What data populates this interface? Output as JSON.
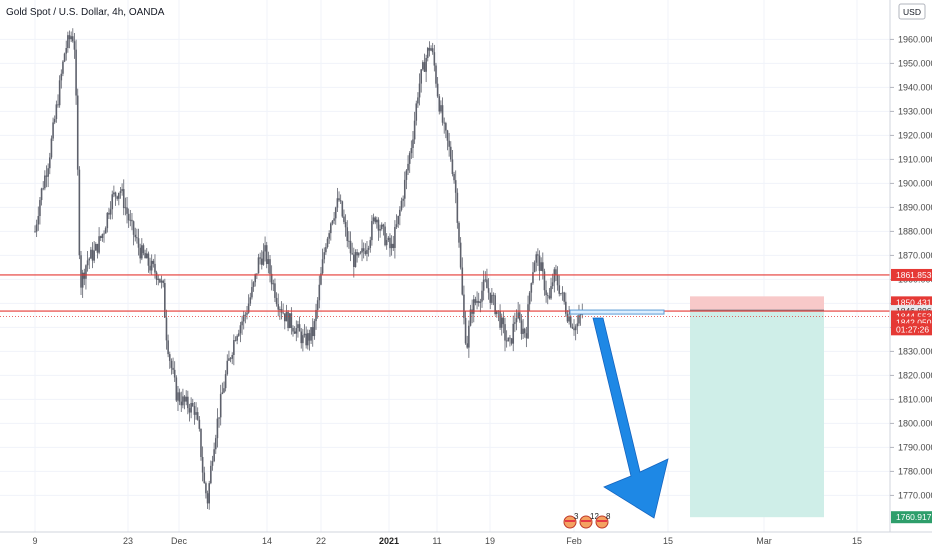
{
  "title": "Gold Spot / U.S. Dollar, 4h, OANDA",
  "currency_button": "USD",
  "colors": {
    "up": "#26a69a",
    "down": "#ef5350",
    "candle": "#5d606b",
    "resistance_line": "#e53935",
    "arrow": "#1e88e5",
    "stop_zone": "#f8c9c9",
    "target_zone": "#cfeee8",
    "target_tag": "#2e9e6b",
    "price_tag": "#e53935"
  },
  "chart_data": {
    "type": "candlestick",
    "symbol": "Gold Spot / U.S. Dollar",
    "interval": "4h",
    "source": "OANDA",
    "ylim": [
      1760,
      1975
    ],
    "y_ticks": [
      1770,
      1780,
      1790,
      1800,
      1810,
      1820,
      1830,
      1840,
      1850,
      1860,
      1870,
      1880,
      1890,
      1900,
      1910,
      1920,
      1930,
      1940,
      1950,
      1960
    ],
    "x_ticks": [
      "9",
      "23",
      "Dec",
      "14",
      "22",
      "2021",
      "11",
      "19",
      "Feb",
      "15",
      "Mar",
      "15"
    ],
    "horizontal_lines": [
      1861.853,
      1846.806
    ],
    "price_tags": [
      {
        "label": "1861.853",
        "value": 1861.853,
        "style": "red"
      },
      {
        "label": "1850.431",
        "value": 1850.431,
        "style": "red"
      },
      {
        "label": "1846.806",
        "value": 1846.806,
        "style": "gray"
      },
      {
        "label": "1844.553",
        "value": 1844.553,
        "style": "red"
      },
      {
        "label": "1842.050",
        "value": 1842.05,
        "style": "red"
      },
      {
        "label": "01:27:26",
        "value": 1839.2,
        "style": "red"
      },
      {
        "label": "1760.917",
        "value": 1760.917,
        "style": "green"
      }
    ],
    "trade_setup": {
      "direction": "short",
      "entry": 1846.806,
      "stop": 1850.431,
      "target": 1760.917
    },
    "price_path": [
      [
        0.0,
        1880
      ],
      [
        0.5,
        1893
      ],
      [
        1.5,
        1910
      ],
      [
        2.5,
        1935
      ],
      [
        3.3,
        1956
      ],
      [
        4.0,
        1962
      ],
      [
        4.3,
        1960
      ],
      [
        4.6,
        1920
      ],
      [
        4.8,
        1880
      ],
      [
        5.0,
        1858
      ],
      [
        5.7,
        1868
      ],
      [
        6.5,
        1871
      ],
      [
        7.5,
        1880
      ],
      [
        8.3,
        1893
      ],
      [
        9.3,
        1898
      ],
      [
        10.5,
        1882
      ],
      [
        11.5,
        1872
      ],
      [
        12.5,
        1866
      ],
      [
        13.5,
        1862
      ],
      [
        14.1,
        1855
      ],
      [
        14.3,
        1840
      ],
      [
        14.8,
        1826
      ],
      [
        15.5,
        1812
      ],
      [
        16.5,
        1808
      ],
      [
        17.5,
        1806
      ],
      [
        18.0,
        1795
      ],
      [
        18.5,
        1775
      ],
      [
        18.9,
        1768
      ],
      [
        19.5,
        1790
      ],
      [
        20.3,
        1808
      ],
      [
        21.0,
        1822
      ],
      [
        22.0,
        1838
      ],
      [
        23.0,
        1845
      ],
      [
        24.0,
        1858
      ],
      [
        24.5,
        1868
      ],
      [
        25.2,
        1871
      ],
      [
        25.8,
        1862
      ],
      [
        26.5,
        1852
      ],
      [
        27.5,
        1844
      ],
      [
        28.5,
        1840
      ],
      [
        29.5,
        1834
      ],
      [
        30.5,
        1838
      ],
      [
        31.0,
        1852
      ],
      [
        31.8,
        1875
      ],
      [
        32.5,
        1886
      ],
      [
        33.3,
        1893
      ],
      [
        34.0,
        1880
      ],
      [
        34.8,
        1868
      ],
      [
        35.5,
        1868
      ],
      [
        36.5,
        1876
      ],
      [
        37.3,
        1887
      ],
      [
        38.0,
        1880
      ],
      [
        39.0,
        1872
      ],
      [
        39.8,
        1885
      ],
      [
        40.5,
        1900
      ],
      [
        41.3,
        1918
      ],
      [
        42.0,
        1940
      ],
      [
        42.8,
        1952
      ],
      [
        43.3,
        1958
      ],
      [
        43.7,
        1950
      ],
      [
        44.2,
        1935
      ],
      [
        44.8,
        1922
      ],
      [
        45.5,
        1912
      ],
      [
        46.0,
        1900
      ],
      [
        46.4,
        1880
      ],
      [
        46.7,
        1858
      ],
      [
        47.0,
        1842
      ],
      [
        47.3,
        1832
      ],
      [
        47.8,
        1848
      ],
      [
        48.5,
        1852
      ],
      [
        49.3,
        1858
      ],
      [
        50.0,
        1852
      ],
      [
        50.7,
        1846
      ],
      [
        51.5,
        1836
      ],
      [
        52.0,
        1832
      ],
      [
        52.7,
        1846
      ],
      [
        53.2,
        1840
      ],
      [
        53.8,
        1838
      ],
      [
        54.3,
        1860
      ],
      [
        54.8,
        1870
      ],
      [
        55.3,
        1866
      ],
      [
        55.8,
        1858
      ],
      [
        56.3,
        1850
      ],
      [
        56.8,
        1862
      ],
      [
        57.3,
        1858
      ],
      [
        57.8,
        1852
      ],
      [
        58.3,
        1846
      ],
      [
        58.8,
        1842
      ],
      [
        59.3,
        1840
      ],
      [
        59.8,
        1845
      ],
      [
        60.1,
        1846
      ]
    ],
    "events": [
      {
        "label": "3"
      },
      {
        "label": "12"
      },
      {
        "label": "8"
      }
    ]
  }
}
